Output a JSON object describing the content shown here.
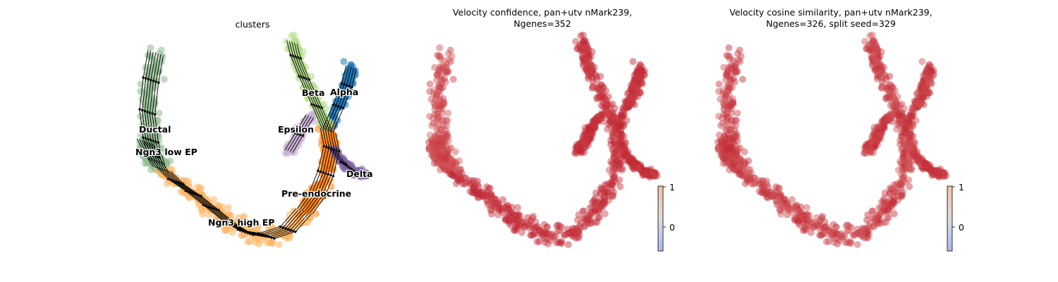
{
  "chart_data": [
    {
      "type": "scatter",
      "title": "clusters",
      "clusters": [
        {
          "name": "Ductal",
          "color": "#8fbc8f"
        },
        {
          "name": "Ngn3 low EP",
          "color": "#8fbc8f"
        },
        {
          "name": "Ngn3 high EP",
          "color": "#fdb462"
        },
        {
          "name": "Pre-endocrine",
          "color": "#ff7f0e"
        },
        {
          "name": "Beta",
          "color": "#b2df8a"
        },
        {
          "name": "Alpha",
          "color": "#1f77b4"
        },
        {
          "name": "Delta",
          "color": "#8064a2"
        },
        {
          "name": "Epsilon",
          "color": "#cab2d6"
        }
      ],
      "streamlines": true,
      "axes": "off"
    },
    {
      "type": "scatter",
      "title_line1": "Velocity confidence, pan+utv nMark239,",
      "title_line2": "Ngenes=352",
      "colormap": "coolwarm",
      "colorbar": {
        "ticks": [
          "1",
          "0"
        ]
      },
      "axes": "off"
    },
    {
      "type": "scatter",
      "title_line1": "Velocity cosine similarity, pan+utv nMark239,",
      "title_line2": "Ngenes=326, split seed=329",
      "colormap": "coolwarm",
      "colorbar": {
        "ticks": [
          "1",
          "0"
        ]
      },
      "axes": "off"
    }
  ]
}
